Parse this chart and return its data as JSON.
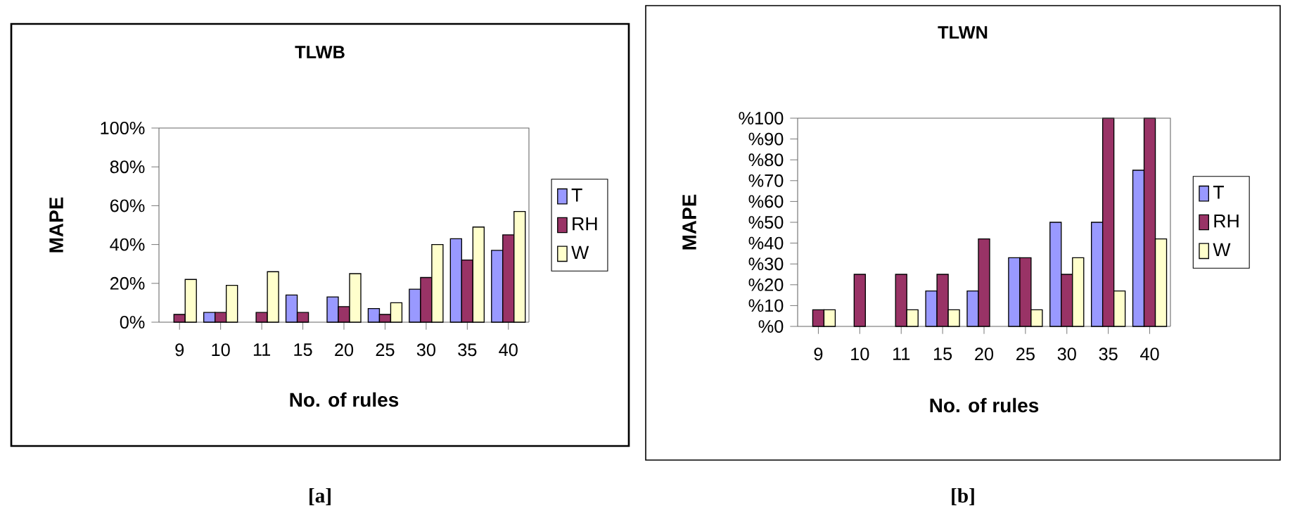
{
  "chart_data": [
    {
      "type": "bar",
      "title": "TLWB",
      "xlabel": "No. of rules",
      "ylabel": "MAPE",
      "categories": [
        "9",
        "10",
        "11",
        "15",
        "20",
        "25",
        "30",
        "35",
        "40"
      ],
      "series": [
        {
          "name": "T",
          "color": "#9999ff",
          "values": [
            null,
            5,
            null,
            14,
            13,
            7,
            17,
            43,
            37
          ]
        },
        {
          "name": "RH",
          "color": "#993366",
          "values": [
            4,
            5,
            5,
            5,
            8,
            4,
            23,
            32,
            45
          ]
        },
        {
          "name": "W",
          "color": "#ffffcc",
          "values": [
            22,
            19,
            26,
            null,
            25,
            10,
            40,
            49,
            57
          ]
        }
      ],
      "ylim": [
        0,
        100
      ],
      "yticks": [
        {
          "value": 0,
          "label": "0%"
        },
        {
          "value": 20,
          "label": "20%"
        },
        {
          "value": 40,
          "label": "40%"
        },
        {
          "value": 60,
          "label": "60%"
        },
        {
          "value": 80,
          "label": "80%"
        },
        {
          "value": 100,
          "label": "100%"
        }
      ],
      "legend": "right",
      "annotations": [
        "[a]"
      ]
    },
    {
      "type": "bar",
      "title": "TLWN",
      "xlabel": "No. of rules",
      "ylabel": "MAPE",
      "categories": [
        "9",
        "10",
        "11",
        "15",
        "20",
        "25",
        "30",
        "35",
        "40"
      ],
      "series": [
        {
          "name": "T",
          "color": "#9999ff",
          "values": [
            null,
            null,
            null,
            17,
            17,
            33,
            50,
            50,
            75
          ]
        },
        {
          "name": "RH",
          "color": "#993366",
          "values": [
            8,
            25,
            25,
            25,
            42,
            33,
            25,
            100,
            100
          ]
        },
        {
          "name": "W",
          "color": "#ffffcc",
          "values": [
            8,
            null,
            8,
            8,
            null,
            8,
            33,
            17,
            42
          ]
        }
      ],
      "ylim": [
        0,
        100
      ],
      "yticks": [
        {
          "value": 0,
          "label": "%0"
        },
        {
          "value": 10,
          "label": "%10"
        },
        {
          "value": 20,
          "label": "%20"
        },
        {
          "value": 30,
          "label": "%30"
        },
        {
          "value": 40,
          "label": "%40"
        },
        {
          "value": 50,
          "label": "%50"
        },
        {
          "value": 60,
          "label": "%60"
        },
        {
          "value": 70,
          "label": "%70"
        },
        {
          "value": 80,
          "label": "%80"
        },
        {
          "value": 90,
          "label": "%90"
        },
        {
          "value": 100,
          "label": "%100"
        }
      ],
      "legend": "right",
      "annotations": [
        "[b]"
      ]
    }
  ]
}
